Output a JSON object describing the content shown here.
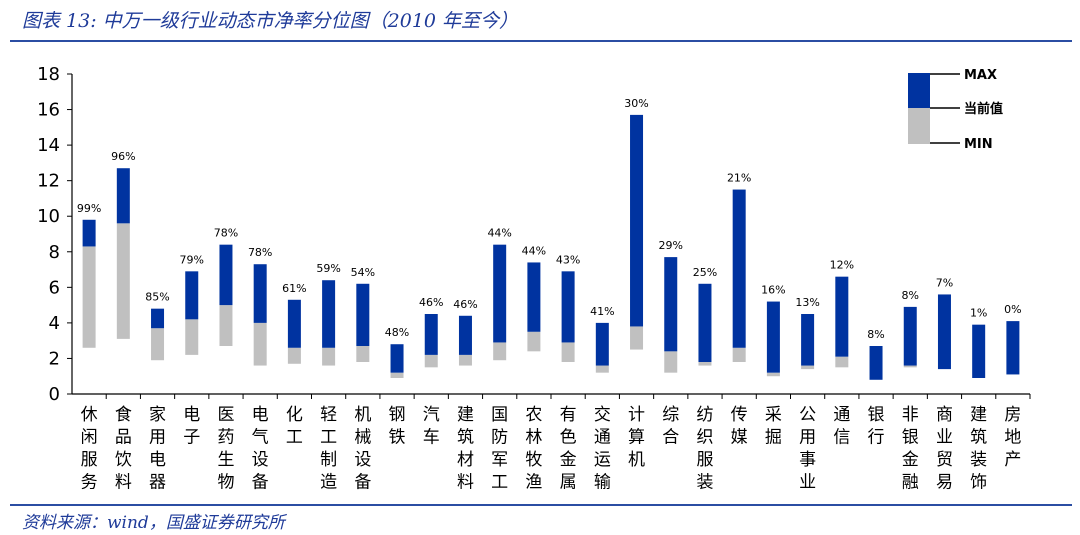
{
  "header": {
    "title": "图表 13:  中万一级行业动态市净率分位图（2010 年至今）"
  },
  "footer": {
    "source": "资料来源：wind，国盛证券研究所"
  },
  "legend": {
    "max": "MAX",
    "current": "当前值",
    "min": "MIN"
  },
  "colors": {
    "upper": "#0033a0",
    "lower": "#c0c0c0"
  },
  "chart_data": {
    "type": "bar",
    "subtype": "floating-range",
    "title": "中万一级行业动态市净率分位图（2010 年至今）",
    "ylim": [
      0,
      18
    ],
    "yticks": [
      0,
      2,
      4,
      6,
      8,
      10,
      12,
      14,
      16,
      18
    ],
    "grid": false,
    "legend_position": "top-right",
    "categories": [
      "休闲服务",
      "食品饮料",
      "家用电器",
      "电子",
      "医药生物",
      "电气设备",
      "化工",
      "轻工制造",
      "机械设备",
      "钢铁",
      "汽车",
      "建筑材料",
      "国防军工",
      "农林牧渔",
      "有色金属",
      "交通运输",
      "计算机",
      "综合",
      "纺织服装",
      "传媒",
      "采掘",
      "公用事业",
      "通信",
      "银行",
      "非银金融",
      "商业贸易",
      "建筑装饰",
      "房地产"
    ],
    "series": [
      {
        "name": "MIN",
        "values": [
          2.6,
          3.1,
          1.9,
          2.2,
          2.7,
          1.6,
          1.7,
          1.6,
          1.8,
          0.9,
          1.5,
          1.6,
          1.9,
          2.4,
          1.8,
          1.2,
          2.5,
          1.2,
          1.6,
          1.8,
          1.0,
          1.4,
          1.5,
          0.8,
          1.5,
          1.4,
          0.9,
          1.1
        ]
      },
      {
        "name": "当前值",
        "values": [
          8.3,
          9.6,
          3.7,
          4.2,
          5.0,
          4.0,
          2.6,
          2.6,
          2.7,
          1.2,
          2.2,
          2.2,
          2.9,
          3.5,
          2.9,
          1.6,
          3.8,
          2.4,
          1.8,
          2.6,
          1.2,
          1.6,
          2.1,
          0.8,
          1.6,
          1.4,
          0.9,
          1.1
        ]
      },
      {
        "name": "MAX",
        "values": [
          9.8,
          12.7,
          4.8,
          6.9,
          8.4,
          7.3,
          5.3,
          6.4,
          6.2,
          2.8,
          4.5,
          4.4,
          8.4,
          7.4,
          6.9,
          4.0,
          15.7,
          7.7,
          6.2,
          11.5,
          5.2,
          4.5,
          6.6,
          2.7,
          4.9,
          5.6,
          3.9,
          4.1
        ]
      }
    ],
    "percentile_labels": [
      "99%",
      "96%",
      "85%",
      "79%",
      "78%",
      "78%",
      "61%",
      "59%",
      "54%",
      "48%",
      "46%",
      "46%",
      "44%",
      "44%",
      "43%",
      "41%",
      "30%",
      "29%",
      "25%",
      "21%",
      "16%",
      "13%",
      "12%",
      "8%",
      "8%",
      "7%",
      "1%",
      "0%"
    ]
  }
}
